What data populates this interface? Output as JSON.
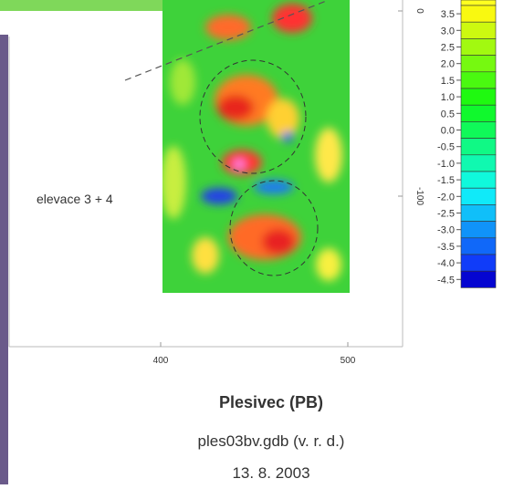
{
  "map": {
    "annotation": "elevace 3 + 4",
    "x_axis_labels": [
      "400",
      "500"
    ],
    "y_axis_labels": [
      "0",
      "-100"
    ],
    "colorbar_labels": [
      "3.5",
      "3.0",
      "2.5",
      "2.0",
      "1.5",
      "1.0",
      "0.5",
      "0.0",
      "-0.5",
      "-1.0",
      "-1.5",
      "-2.0",
      "-2.5",
      "-3.0",
      "-3.5",
      "-4.0",
      "-4.5"
    ]
  },
  "caption": {
    "title": "Plesivec (PB)",
    "file": "ples03bv.gdb (v. r. d.)",
    "date": "13. 8. 2003"
  }
}
